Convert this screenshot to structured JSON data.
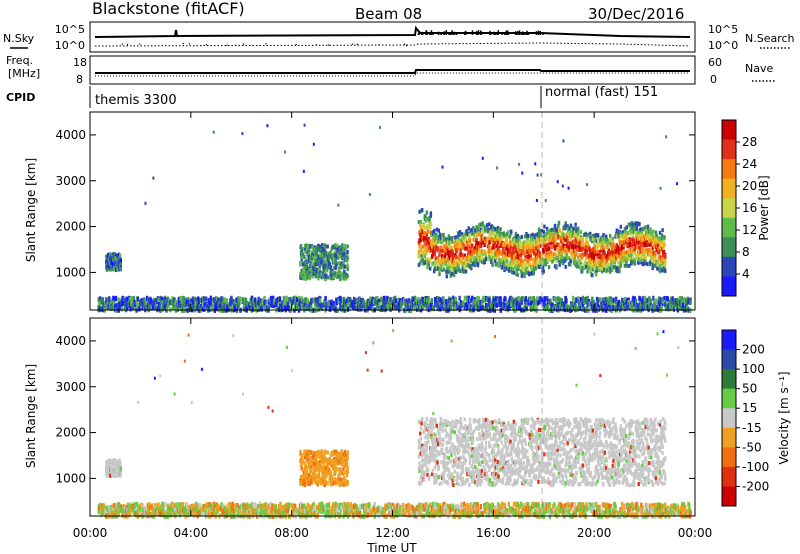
{
  "header": {
    "station": "Blackstone (fitACF)",
    "beam": "Beam 08",
    "date": "30/Dec/2016"
  },
  "noise_panel": {
    "left_label": "N.Sky",
    "right_label": "N.Search",
    "ticks": [
      "10^5",
      "10^0"
    ],
    "right_ticks": [
      "10^5",
      "10^0"
    ]
  },
  "freq_panel": {
    "left_label_1": "Freq.",
    "left_label_2": "[MHz]",
    "left_ticks": [
      "18",
      "8"
    ],
    "right_label": "Nave",
    "right_ticks": [
      "60",
      "0"
    ]
  },
  "cpid": {
    "label": "CPID",
    "modes": [
      {
        "name": "themis 3300",
        "start_hour": 0
      },
      {
        "name": "normal (fast) 151",
        "start_hour": 18
      }
    ]
  },
  "colors": {
    "power": [
      "#1a1aff",
      "#2a46b8",
      "#3b8f5a",
      "#5dbb4a",
      "#c8d44a",
      "#f0b020",
      "#f57a10",
      "#e0301a",
      "#cc0000"
    ],
    "velocity": [
      "#1a1aff",
      "#2a4aa8",
      "#2e7a3a",
      "#66cc44",
      "#c8c8c8",
      "#f0a020",
      "#f07010",
      "#e03010",
      "#cc0000"
    ]
  },
  "chart_data": [
    {
      "type": "heatmap",
      "name": "power",
      "xlabel": "Time UT",
      "ylabel": "Slant Range [km]",
      "xlim": [
        0,
        24
      ],
      "ylim": [
        180,
        4500
      ],
      "x_ticks": [
        "00:00",
        "04:00",
        "08:00",
        "12:00",
        "16:00",
        "20:00",
        "00:00"
      ],
      "y_ticks": [
        "1000",
        "2000",
        "3000",
        "4000"
      ],
      "colorbar_label": "Power [dB]",
      "colorbar_ticks": [
        "4",
        "8",
        "12",
        "16",
        "20",
        "24",
        "28"
      ],
      "regions": [
        {
          "t": [
            0.6,
            1.2
          ],
          "r": [
            1050,
            1400
          ],
          "level": "low"
        },
        {
          "t": [
            8.3,
            10.2
          ],
          "r": [
            850,
            1600
          ],
          "level": "low-mid"
        },
        {
          "t": [
            13.0,
            22.8
          ],
          "r": [
            850,
            2300
          ],
          "level": "high-core"
        },
        {
          "t": [
            0.3,
            23.8
          ],
          "r": [
            180,
            450
          ],
          "level": "low"
        }
      ]
    },
    {
      "type": "heatmap",
      "name": "velocity",
      "xlabel": "Time UT",
      "ylabel": "Slant Range [km]",
      "xlim": [
        0,
        24
      ],
      "ylim": [
        180,
        4500
      ],
      "x_ticks": [
        "00:00",
        "04:00",
        "08:00",
        "12:00",
        "16:00",
        "20:00",
        "00:00"
      ],
      "y_ticks": [
        "1000",
        "2000",
        "3000",
        "4000"
      ],
      "colorbar_label": "Velocity [m s⁻¹]",
      "colorbar_ticks": [
        "200",
        "100",
        "50",
        "15",
        "-15",
        "-50",
        "-100",
        "-200"
      ],
      "regions": [
        {
          "t": [
            0.6,
            1.2
          ],
          "r": [
            1050,
            1400
          ],
          "level": "near-zero"
        },
        {
          "t": [
            8.3,
            10.2
          ],
          "r": [
            850,
            1600
          ],
          "level": "-50"
        },
        {
          "t": [
            13.0,
            22.8
          ],
          "r": [
            850,
            2300
          ],
          "level": "near-zero"
        },
        {
          "t": [
            0.3,
            23.8
          ],
          "r": [
            180,
            450
          ],
          "level": "mixed"
        }
      ]
    }
  ]
}
